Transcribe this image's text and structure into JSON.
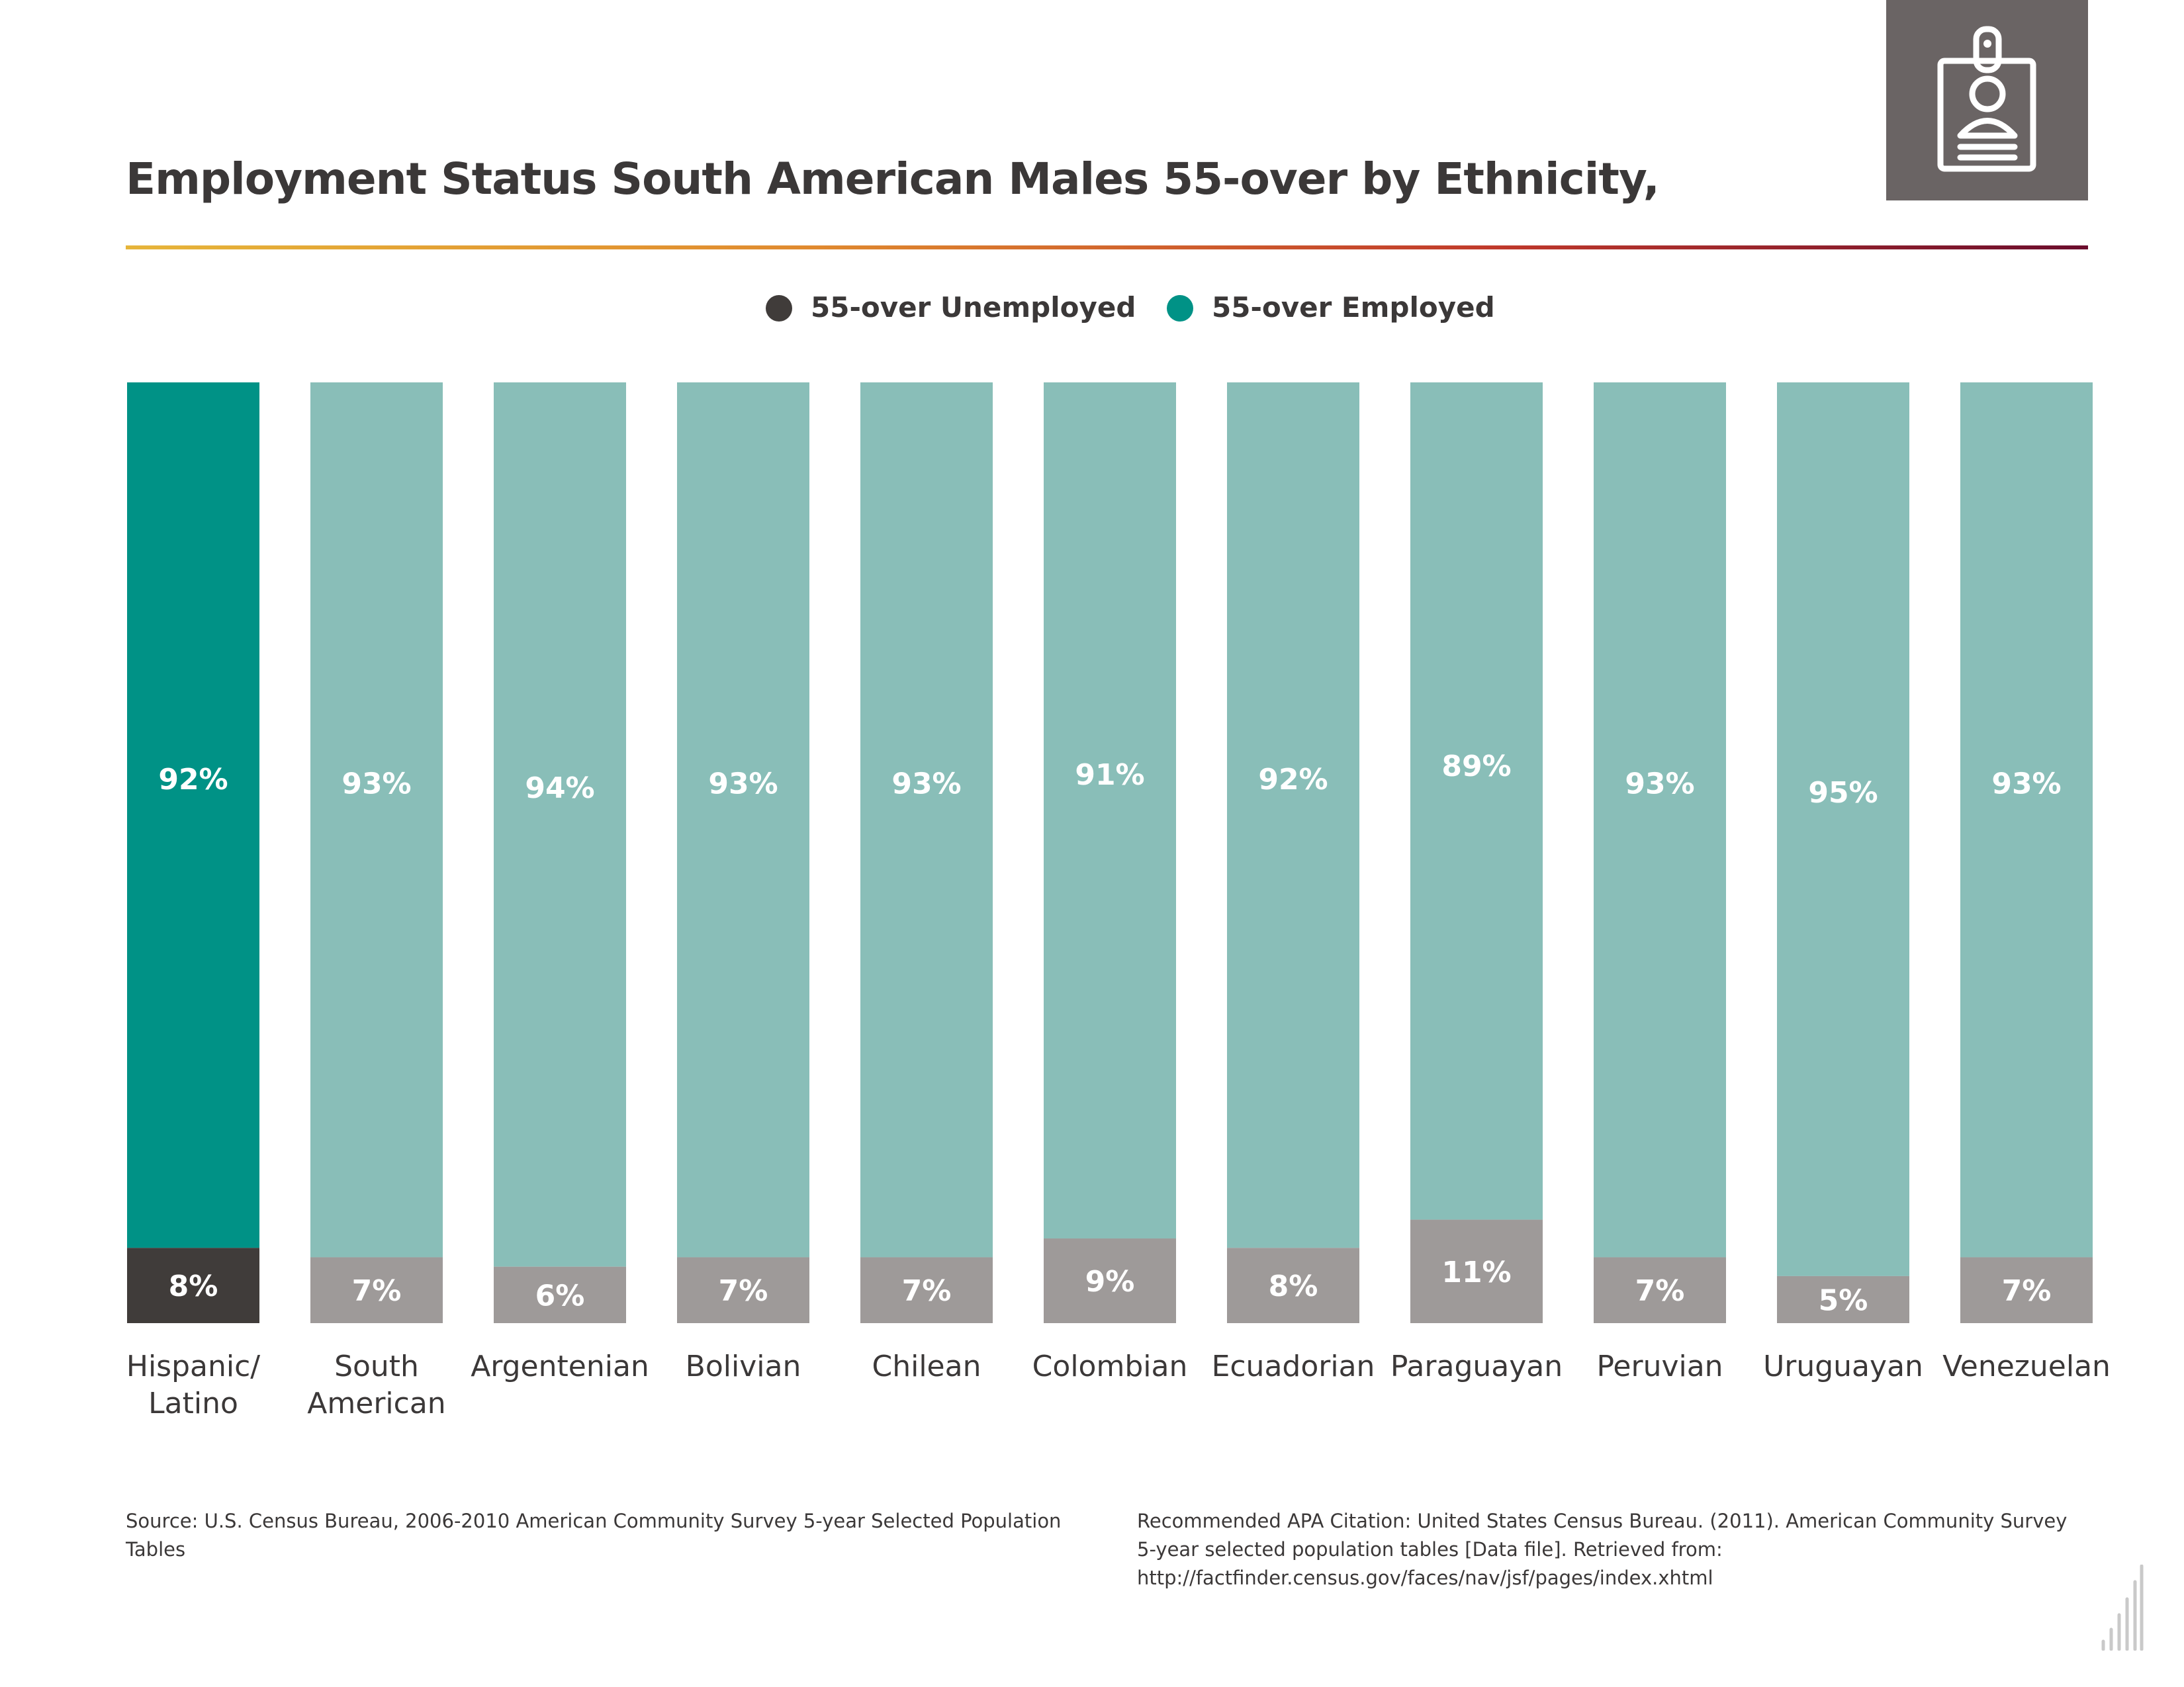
{
  "title": "Employment Status South American Males 55-over by Ethnicity,",
  "legend": {
    "unemployed_label": "55-over Unemployed",
    "employed_label": "55-over Employed"
  },
  "colors": {
    "unemployed_highlight": "#403c3a",
    "employed_highlight": "#009286",
    "unemployed": "#9e9a99",
    "employed": "#89beb8",
    "label_text": "#ffffff",
    "axis_text": "#3b3838",
    "badge": "#6a6464"
  },
  "icon": "id-badge-icon",
  "chart_data": {
    "type": "bar",
    "stacked": true,
    "value_unit": "percent",
    "categories": [
      [
        "Hispanic/",
        "Latino"
      ],
      [
        "South",
        "American"
      ],
      [
        "Argentenian"
      ],
      [
        "Bolivian"
      ],
      [
        "Chilean"
      ],
      [
        "Colombian"
      ],
      [
        "Ecuadorian"
      ],
      [
        "Paraguayan"
      ],
      [
        "Peruvian"
      ],
      [
        "Uruguayan"
      ],
      [
        "Venezuelan"
      ]
    ],
    "series": [
      {
        "name": "55-over Unemployed",
        "values": [
          8,
          7,
          6,
          7,
          7,
          9,
          8,
          11,
          7,
          5,
          7
        ],
        "labels": [
          "8%",
          "7%",
          "6%",
          "7%",
          "7%",
          "9%",
          "8%",
          "11%",
          "7%",
          "5%",
          "7%"
        ]
      },
      {
        "name": "55-over Employed",
        "values": [
          92,
          93,
          94,
          93,
          93,
          91,
          92,
          89,
          93,
          95,
          93
        ],
        "labels": [
          "92%",
          "93%",
          "94%",
          "93%",
          "93%",
          "91%",
          "92%",
          "89%",
          "93%",
          "95%",
          "93%"
        ]
      }
    ],
    "highlighted_category_index": 0,
    "ylim": [
      0,
      100
    ],
    "grid": false,
    "legend_position": "top-center"
  },
  "footnotes": {
    "source": "Source:  U.S. Census Bureau, 2006-2010 American Community Survey 5-year Selected Population Tables",
    "citation": "Recommended APA Citation: United States Census Bureau. (2011). American Community Survey 5-year selected population tables [Data file]. Retrieved from: http://factfinder.census.gov/faces/nav/jsf/pages/index.xhtml"
  }
}
